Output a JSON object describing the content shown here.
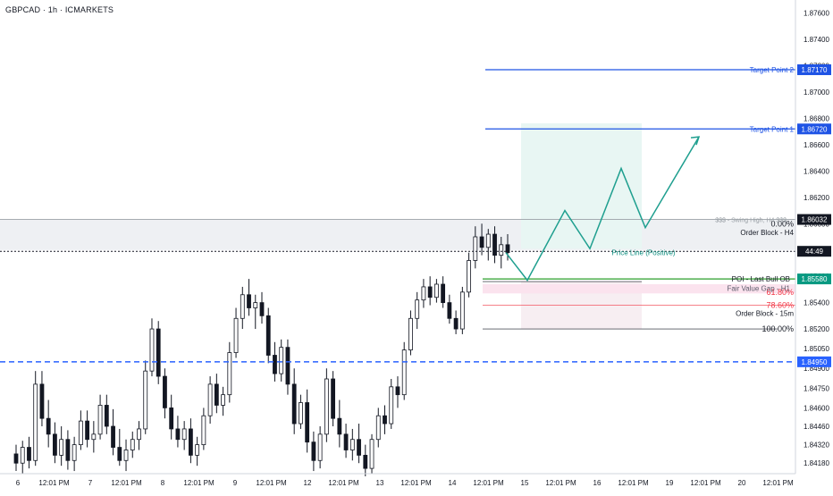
{
  "header": {
    "symbol": "GBPCAD · 1h · ICMARKETS"
  },
  "colors": {
    "up": "#089981",
    "down": "#131722",
    "target": "#1e53e5",
    "dashed": "#2962ff",
    "price_line_label": "#0f8f80",
    "fib": "#f23645",
    "poi": "#089981",
    "order_block_h4": "#eef0f3",
    "order_block_15m": "#f7eef2",
    "fvg": "#fbe3ee",
    "projection_zone": "#e8f6f3",
    "projection_path": "#1f9f8f"
  },
  "chart_data": {
    "type": "candlestick",
    "symbol": "GBPCAD",
    "timeframe": "1h",
    "broker": "ICMARKETS",
    "ylim": [
      1.841,
      1.877
    ],
    "y_ticks": [
      "1.87600",
      "1.87400",
      "1.87200",
      "1.87000",
      "1.86800",
      "1.86600",
      "1.86400",
      "1.86200",
      "1.86000",
      "1.85800",
      "1.85600",
      "1.85400",
      "1.85200",
      "1.85050",
      "1.84900",
      "1.84750",
      "1.84600",
      "1.84460",
      "1.84320",
      "1.84180"
    ],
    "x_ticks": [
      "6",
      "12:01 PM",
      "7",
      "12:01 PM",
      "8",
      "12:01 PM",
      "9",
      "12:01 PM",
      "12",
      "12:01 PM",
      "13",
      "12:01 PM",
      "14",
      "12:01 PM",
      "15",
      "12:01 PM",
      "16",
      "12:01 PM",
      "19",
      "12:01 PM",
      "20",
      "12:01 PM"
    ],
    "candles": [
      [
        1.8425,
        1.8432,
        1.8412,
        1.8418
      ],
      [
        1.8418,
        1.8435,
        1.841,
        1.843
      ],
      [
        1.843,
        1.8438,
        1.8414,
        1.842
      ],
      [
        1.842,
        1.8488,
        1.8416,
        1.8478
      ],
      [
        1.8478,
        1.8488,
        1.8446,
        1.8452
      ],
      [
        1.8452,
        1.8466,
        1.843,
        1.844
      ],
      [
        1.844,
        1.8449,
        1.8418,
        1.8424
      ],
      [
        1.8424,
        1.8446,
        1.8416,
        1.8436
      ],
      [
        1.8436,
        1.8443,
        1.8413,
        1.842
      ],
      [
        1.842,
        1.8438,
        1.8412,
        1.8432
      ],
      [
        1.8432,
        1.8458,
        1.8428,
        1.845
      ],
      [
        1.845,
        1.8458,
        1.843,
        1.8436
      ],
      [
        1.8436,
        1.845,
        1.8426,
        1.844
      ],
      [
        1.844,
        1.847,
        1.8436,
        1.8462
      ],
      [
        1.8462,
        1.847,
        1.844,
        1.8446
      ],
      [
        1.8446,
        1.8459,
        1.8424,
        1.843
      ],
      [
        1.843,
        1.8444,
        1.8416,
        1.842
      ],
      [
        1.842,
        1.8436,
        1.8412,
        1.8428
      ],
      [
        1.8428,
        1.8442,
        1.8422,
        1.8436
      ],
      [
        1.8436,
        1.845,
        1.8428,
        1.8444
      ],
      [
        1.8444,
        1.8496,
        1.844,
        1.8488
      ],
      [
        1.8488,
        1.8528,
        1.8484,
        1.852
      ],
      [
        1.852,
        1.8526,
        1.8478,
        1.8484
      ],
      [
        1.8484,
        1.849,
        1.8452,
        1.846
      ],
      [
        1.846,
        1.847,
        1.8436,
        1.8444
      ],
      [
        1.8444,
        1.8454,
        1.843,
        1.8436
      ],
      [
        1.8436,
        1.845,
        1.8428,
        1.8444
      ],
      [
        1.8444,
        1.8452,
        1.8418,
        1.8424
      ],
      [
        1.8424,
        1.8438,
        1.8416,
        1.8432
      ],
      [
        1.8432,
        1.846,
        1.8428,
        1.8454
      ],
      [
        1.8454,
        1.8484,
        1.8448,
        1.8478
      ],
      [
        1.8478,
        1.8486,
        1.8456,
        1.8462
      ],
      [
        1.8462,
        1.8476,
        1.8454,
        1.847
      ],
      [
        1.847,
        1.851,
        1.8464,
        1.8502
      ],
      [
        1.8502,
        1.8536,
        1.8498,
        1.8528
      ],
      [
        1.8528,
        1.8552,
        1.852,
        1.8546
      ],
      [
        1.8546,
        1.8558,
        1.853,
        1.8536
      ],
      [
        1.8536,
        1.8546,
        1.852,
        1.854
      ],
      [
        1.854,
        1.8548,
        1.8524,
        1.853
      ],
      [
        1.853,
        1.8536,
        1.8494,
        1.85
      ],
      [
        1.85,
        1.851,
        1.848,
        1.8486
      ],
      [
        1.8486,
        1.8512,
        1.848,
        1.8506
      ],
      [
        1.8506,
        1.8512,
        1.847,
        1.8478
      ],
      [
        1.8478,
        1.849,
        1.844,
        1.8448
      ],
      [
        1.8448,
        1.847,
        1.8444,
        1.8464
      ],
      [
        1.8464,
        1.8474,
        1.8426,
        1.8434
      ],
      [
        1.8434,
        1.8442,
        1.8412,
        1.842
      ],
      [
        1.842,
        1.8446,
        1.8414,
        1.844
      ],
      [
        1.844,
        1.849,
        1.8434,
        1.8482
      ],
      [
        1.8482,
        1.8488,
        1.8446,
        1.8452
      ],
      [
        1.8452,
        1.8466,
        1.843,
        1.844
      ],
      [
        1.844,
        1.8448,
        1.8422,
        1.8428
      ],
      [
        1.8428,
        1.8444,
        1.842,
        1.8436
      ],
      [
        1.8436,
        1.8448,
        1.8418,
        1.8424
      ],
      [
        1.8424,
        1.8432,
        1.8408,
        1.8414
      ],
      [
        1.8414,
        1.844,
        1.841,
        1.8436
      ],
      [
        1.8436,
        1.846,
        1.843,
        1.8454
      ],
      [
        1.8454,
        1.8462,
        1.844,
        1.8448
      ],
      [
        1.8448,
        1.8482,
        1.8444,
        1.8476
      ],
      [
        1.8476,
        1.8484,
        1.846,
        1.847
      ],
      [
        1.847,
        1.851,
        1.8466,
        1.8504
      ],
      [
        1.8504,
        1.8534,
        1.85,
        1.8528
      ],
      [
        1.8528,
        1.8548,
        1.852,
        1.8542
      ],
      [
        1.8542,
        1.8558,
        1.8536,
        1.8552
      ],
      [
        1.8552,
        1.856,
        1.8538,
        1.8544
      ],
      [
        1.8544,
        1.8558,
        1.854,
        1.8554
      ],
      [
        1.8554,
        1.856,
        1.8536,
        1.854
      ],
      [
        1.854,
        1.8546,
        1.8524,
        1.8528
      ],
      [
        1.8528,
        1.8534,
        1.8516,
        1.852
      ],
      [
        1.852,
        1.8552,
        1.8516,
        1.8548
      ],
      [
        1.8548,
        1.8578,
        1.8544,
        1.8572
      ],
      [
        1.8572,
        1.8598,
        1.8566,
        1.859
      ],
      [
        1.859,
        1.86,
        1.8576,
        1.8582
      ],
      [
        1.8582,
        1.8596,
        1.8572,
        1.8592
      ],
      [
        1.8592,
        1.8598,
        1.857,
        1.8576
      ],
      [
        1.8576,
        1.859,
        1.8566,
        1.8584
      ],
      [
        1.8584,
        1.8592,
        1.8572,
        1.8578
      ]
    ],
    "levels": [
      {
        "label": "Target Point 2",
        "price": 1.8717,
        "badge": "1.87170"
      },
      {
        "label": "Target Point 1",
        "price": 1.8672,
        "badge": "1.86720"
      },
      {
        "label": "1.84950",
        "price": 1.8495,
        "badge": "1.84950"
      }
    ],
    "fib_labels": [
      {
        "label": "0.00%",
        "price": 1.86
      },
      {
        "label": "61.80%",
        "price": 1.8548
      },
      {
        "label": "78.60%",
        "price": 1.8538
      },
      {
        "label": "100.00%",
        "price": 1.852
      }
    ],
    "annotations": [
      {
        "label": "Order Block - H4",
        "price": 1.85935
      },
      {
        "label": "Price Line (Positive)",
        "price": 1.8578
      },
      {
        "label": "POI - Last Bull OB",
        "price": 1.8558
      },
      {
        "label": "Fair Value Gap - H1",
        "price": 1.8551
      },
      {
        "label": "Order Block - 15m",
        "price": 1.8532
      },
      {
        "label": "$$$ - Swing High, H4 $$$",
        "price": 1.86032
      }
    ],
    "right_badges": [
      {
        "text": "1.86032",
        "price": 1.86032
      },
      {
        "text": "44:49",
        "price": 1.8579
      },
      {
        "text": "1.85580",
        "price": 1.8558
      },
      {
        "text": "1.84950",
        "price": 1.8495
      }
    ],
    "projection_path": [
      [
        1.8578,
        0
      ],
      [
        1.8557,
        1
      ],
      [
        1.861,
        2
      ],
      [
        1.8581,
        3
      ],
      [
        1.8642,
        4
      ],
      [
        1.8597,
        5
      ],
      [
        1.8666,
        6
      ]
    ]
  }
}
